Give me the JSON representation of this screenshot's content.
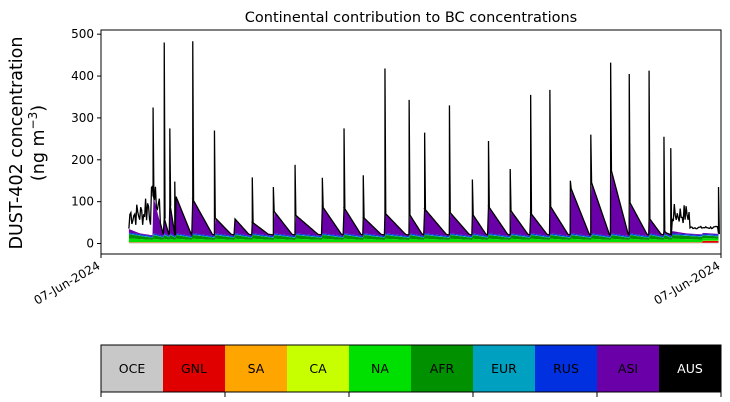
{
  "chart_data": {
    "type": "area",
    "title": "Continental contribution to BC concentrations",
    "ylabel_line1": "DUST-402 concentration",
    "ylabel_line2_prefix": "(ng m",
    "ylabel_line2_exp": "−3",
    "ylabel_line2_suffix": ")",
    "xlabel": "",
    "ylim": [
      -25,
      510
    ],
    "yticks": [
      0,
      100,
      200,
      300,
      400,
      500
    ],
    "x_range": [
      0,
      100
    ],
    "xtick_labels": [
      "07-Jun-2024",
      "07-Jun-2024"
    ],
    "grid": false,
    "stack_order": [
      "OCE",
      "GNL",
      "SA",
      "CA",
      "NA",
      "AFR",
      "EUR",
      "RUS",
      "ASI"
    ],
    "series_colors": {
      "OCE": "#c8c8c8",
      "GNL": "#e00000",
      "SA": "#ffa500",
      "CA": "#c8ff00",
      "NA": "#00e000",
      "AFR": "#009000",
      "EUR": "#00a0c0",
      "RUS": "#0030e0",
      "ASI": "#6a00a8",
      "AUS": "#000000"
    },
    "approx_total_peaks": [
      {
        "x": 8.4,
        "y": 325
      },
      {
        "x": 10.2,
        "y": 480
      },
      {
        "x": 11.1,
        "y": 275
      },
      {
        "x": 11.9,
        "y": 148
      },
      {
        "x": 14.8,
        "y": 483
      },
      {
        "x": 18.3,
        "y": 270
      },
      {
        "x": 24.4,
        "y": 158
      },
      {
        "x": 27.8,
        "y": 135
      },
      {
        "x": 31.3,
        "y": 188
      },
      {
        "x": 35.7,
        "y": 157
      },
      {
        "x": 39.2,
        "y": 275
      },
      {
        "x": 42.3,
        "y": 163
      },
      {
        "x": 45.8,
        "y": 418
      },
      {
        "x": 49.7,
        "y": 343
      },
      {
        "x": 52.2,
        "y": 265
      },
      {
        "x": 56.2,
        "y": 330
      },
      {
        "x": 59.9,
        "y": 153
      },
      {
        "x": 62.5,
        "y": 245
      },
      {
        "x": 66.0,
        "y": 178
      },
      {
        "x": 69.3,
        "y": 355
      },
      {
        "x": 72.4,
        "y": 367
      },
      {
        "x": 75.7,
        "y": 150
      },
      {
        "x": 79.0,
        "y": 260
      },
      {
        "x": 82.2,
        "y": 432
      },
      {
        "x": 85.2,
        "y": 405
      },
      {
        "x": 88.4,
        "y": 413
      },
      {
        "x": 90.8,
        "y": 255
      },
      {
        "x": 91.9,
        "y": 228
      },
      {
        "x": 99.6,
        "y": 135
      }
    ]
  },
  "legend": {
    "items": [
      {
        "label": "OCE",
        "color": "#c8c8c8",
        "text_color": "#000000"
      },
      {
        "label": "GNL",
        "color": "#e00000",
        "text_color": "#000000"
      },
      {
        "label": "SA",
        "color": "#ffa500",
        "text_color": "#000000"
      },
      {
        "label": "CA",
        "color": "#c8ff00",
        "text_color": "#000000"
      },
      {
        "label": "NA",
        "color": "#00e000",
        "text_color": "#000000"
      },
      {
        "label": "AFR",
        "color": "#009000",
        "text_color": "#000000"
      },
      {
        "label": "EUR",
        "color": "#00a0c0",
        "text_color": "#000000"
      },
      {
        "label": "RUS",
        "color": "#0030e0",
        "text_color": "#000000"
      },
      {
        "label": "ASI",
        "color": "#6a00a8",
        "text_color": "#000000"
      },
      {
        "label": "AUS",
        "color": "#000000",
        "text_color": "#ffffff"
      }
    ]
  }
}
